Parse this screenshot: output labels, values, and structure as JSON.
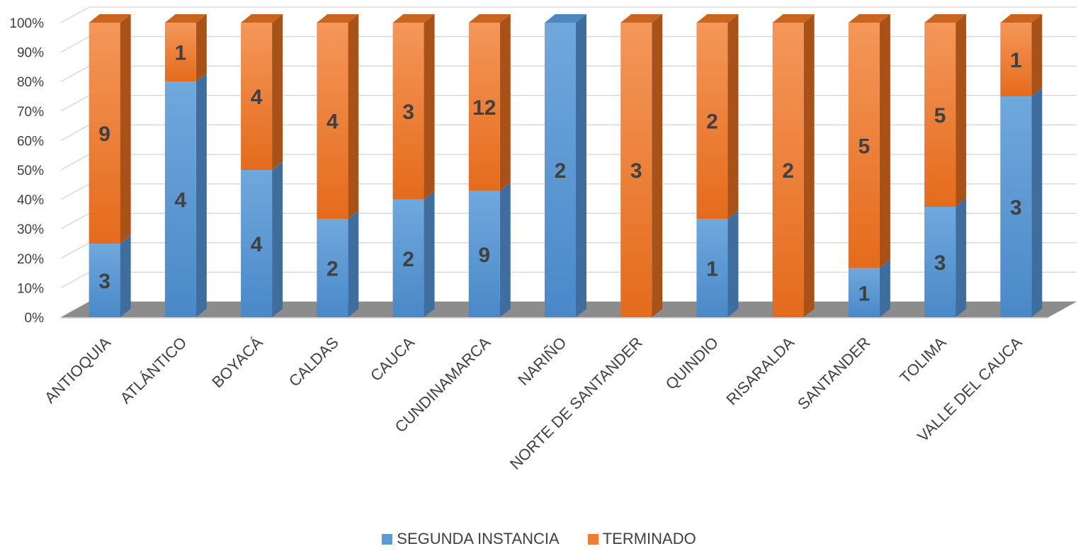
{
  "chart_data": {
    "type": "bar",
    "stacked": "percent",
    "style": "3d-column",
    "categories": [
      "ANTIOQUIA",
      "ATLÁNTICO",
      "BOYACÁ",
      "CALDAS",
      "CAUCA",
      "CUNDINAMARCA",
      "NARIÑO",
      "NORTE DE SANTANDER",
      "QUINDIO",
      "RISARALDA",
      "SANTANDER",
      "TOLIMA",
      "VALLE DEL CAUCA"
    ],
    "series": [
      {
        "name": "SEGUNDA INSTANCIA",
        "color": "#5B9BD5",
        "values": [
          3,
          4,
          4,
          2,
          2,
          9,
          2,
          0,
          1,
          0,
          1,
          3,
          3
        ]
      },
      {
        "name": "TERMINADO",
        "color": "#ED7D31",
        "values": [
          9,
          1,
          4,
          4,
          3,
          12,
          0,
          3,
          2,
          2,
          5,
          5,
          1
        ]
      }
    ],
    "yticks": [
      "0%",
      "10%",
      "20%",
      "30%",
      "40%",
      "50%",
      "60%",
      "70%",
      "80%",
      "90%",
      "100%"
    ],
    "ylim": [
      0,
      100
    ],
    "grid": true,
    "legend": "bottom"
  }
}
